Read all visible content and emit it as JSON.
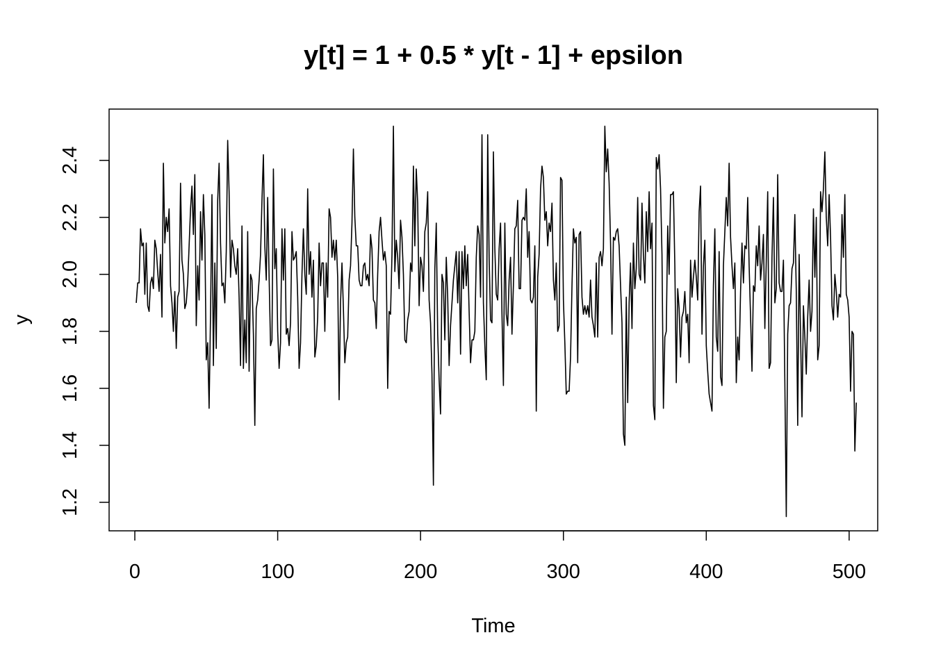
{
  "chart_data": {
    "type": "line",
    "title": "y[t] = 1 + 0.5 * y[t - 1] + epsilon",
    "xlabel": "Time",
    "ylabel": "y",
    "xlim": [
      -18,
      520
    ],
    "ylim": [
      1.1,
      2.58
    ],
    "x_ticks": [
      0,
      100,
      200,
      300,
      400,
      500
    ],
    "x_tick_labels": [
      "0",
      "100",
      "200",
      "300",
      "400",
      "500"
    ],
    "y_ticks": [
      1.2,
      1.4,
      1.6,
      1.8,
      2.0,
      2.2,
      2.4
    ],
    "y_tick_labels": [
      "1.2",
      "1.4",
      "1.6",
      "1.8",
      "2.0",
      "2.2",
      "2.4"
    ],
    "grid": false,
    "legend": "none",
    "line_color": "#000000",
    "series": [
      {
        "x_start": 1,
        "x_step": 1,
        "values": [
          1.9,
          1.97,
          1.97,
          2.16,
          2.1,
          2.11,
          1.93,
          2.11,
          1.89,
          1.87,
          1.97,
          1.99,
          1.95,
          2.12,
          2.09,
          2.01,
          1.94,
          2.07,
          1.85,
          2.39,
          2.11,
          2.2,
          2.15,
          2.23,
          1.96,
          1.9,
          1.8,
          1.94,
          1.74,
          1.92,
          1.94,
          2.32,
          2.05,
          2.0,
          1.88,
          1.9,
          1.97,
          2.1,
          2.23,
          2.31,
          2.14,
          2.35,
          1.82,
          2.03,
          1.91,
          2.22,
          2.05,
          2.28,
          2.14,
          1.7,
          1.76,
          1.53,
          1.86,
          2.28,
          1.68,
          2.04,
          1.74,
          2.26,
          2.39,
          2.11,
          1.96,
          1.97,
          1.9,
          2.08,
          2.47,
          2.29,
          1.99,
          2.12,
          2.09,
          2.03,
          2.0,
          2.09,
          1.92,
          1.68,
          2.17,
          1.67,
          1.84,
          1.69,
          2.15,
          1.66,
          2.0,
          1.98,
          1.79,
          1.47,
          1.88,
          1.91,
          1.98,
          2.07,
          2.26,
          2.42,
          2.1,
          1.98,
          2.27,
          1.99,
          1.75,
          1.77,
          2.37,
          2.02,
          2.09,
          1.8,
          1.67,
          1.76,
          2.16,
          1.98,
          2.16,
          1.79,
          1.81,
          1.75,
          1.83,
          2.15,
          2.05,
          2.06,
          2.08,
          1.92,
          1.67,
          1.76,
          2.0,
          2.16,
          2.0,
          1.93,
          2.3,
          2.0,
          2.08,
          1.92,
          2.05,
          1.71,
          1.75,
          1.85,
          2.11,
          1.96,
          2.04,
          2.04,
          1.8,
          2.04,
          1.92,
          2.23,
          2.2,
          2.06,
          2.12,
          2.05,
          2.12,
          1.99,
          1.56,
          1.9,
          2.04,
          1.88,
          1.69,
          1.76,
          1.78,
          1.98,
          2.03,
          2.18,
          2.44,
          2.2,
          2.1,
          2.1,
          1.98,
          1.96,
          1.96,
          2.03,
          2.04,
          1.98,
          2.0,
          1.96,
          2.14,
          2.09,
          1.91,
          1.9,
          1.81,
          2.0,
          2.15,
          2.2,
          2.12,
          2.05,
          2.08,
          2.03,
          1.6,
          1.87,
          1.86,
          2.07,
          2.52,
          2.01,
          2.12,
          2.06,
          1.95,
          2.19,
          2.13,
          2.0,
          1.77,
          1.76,
          1.84,
          1.87,
          2.04,
          2.01,
          2.38,
          2.1,
          2.37,
          2.25,
          1.89,
          2.06,
          2.03,
          1.94,
          2.15,
          2.18,
          2.29,
          1.91,
          1.83,
          1.65,
          1.26,
          2.02,
          2.18,
          1.79,
          1.63,
          1.51,
          2.0,
          1.97,
          1.77,
          2.06,
          1.92,
          1.68,
          1.82,
          1.9,
          1.98,
          2.03,
          2.08,
          1.9,
          2.08,
          1.72,
          2.08,
          1.95,
          2.1,
          1.96,
          2.07,
          1.87,
          1.69,
          1.77,
          1.77,
          1.8,
          2.06,
          2.17,
          2.14,
          1.92,
          2.49,
          1.9,
          1.75,
          1.63,
          2.49,
          2.06,
          1.84,
          1.83,
          2.43,
          2.09,
          1.93,
          1.91,
          2.09,
          2.18,
          1.86,
          1.61,
          2.18,
          1.86,
          1.82,
          1.98,
          2.06,
          1.79,
          1.96,
          2.16,
          2.17,
          2.26,
          1.95,
          1.95,
          2.19,
          2.2,
          2.19,
          2.3,
          2.06,
          2.15,
          1.91,
          1.9,
          1.92,
          2.1,
          1.52,
          1.99,
          2.07,
          2.3,
          2.38,
          2.34,
          2.19,
          2.22,
          2.1,
          2.18,
          2.15,
          2.25,
          1.98,
          1.91,
          2.04,
          1.8,
          1.82,
          2.34,
          2.33,
          1.91,
          1.76,
          1.58,
          1.59,
          1.59,
          1.71,
          1.96,
          2.16,
          2.11,
          2.13,
          1.69,
          2.14,
          2.15,
          1.92,
          1.86,
          1.89,
          1.86,
          1.89,
          1.85,
          1.98,
          1.85,
          1.82,
          1.78,
          2.04,
          1.78,
          2.06,
          2.08,
          2.03,
          2.09,
          2.52,
          2.36,
          2.44,
          2.32,
          2.11,
          1.79,
          2.13,
          2.12,
          2.15,
          2.16,
          2.1,
          1.96,
          1.83,
          1.44,
          1.4,
          1.92,
          1.55,
          1.9,
          2.04,
          1.81,
          2.11,
          1.95,
          2.02,
          2.27,
          2.0,
          1.98,
          2.25,
          2.07,
          1.97,
          2.22,
          2.08,
          2.29,
          2.09,
          2.18,
          1.54,
          1.49,
          2.41,
          2.37,
          2.42,
          2.3,
          2.07,
          1.53,
          1.78,
          1.8,
          2.17,
          2.0,
          2.28,
          2.28,
          2.29,
          2.03,
          1.62,
          1.95,
          1.88,
          1.71,
          1.85,
          1.87,
          1.94,
          1.83,
          1.86,
          1.69,
          2.05,
          1.92,
          1.99,
          2.05,
          1.99,
          1.91,
          2.22,
          2.31,
          1.79,
          2.03,
          2.12,
          1.75,
          1.66,
          1.58,
          1.55,
          1.52,
          1.96,
          2.16,
          1.78,
          1.73,
          2.08,
          1.64,
          1.61,
          2.03,
          2.15,
          2.27,
          2.17,
          2.39,
          2.13,
          2.03,
          1.95,
          2.04,
          1.62,
          1.78,
          1.7,
          1.94,
          2.11,
          1.97,
          2.1,
          2.09,
          2.27,
          2.03,
          1.85,
          1.66,
          1.96,
          1.94,
          2.1,
          2.03,
          2.17,
          1.98,
          2.04,
          2.14,
          1.81,
          2.05,
          2.29,
          1.67,
          1.69,
          2.06,
          2.27,
          1.9,
          1.95,
          2.35,
          1.97,
          1.94,
          1.94,
          2.05,
          1.62,
          1.15,
          1.79,
          1.89,
          1.9,
          2.02,
          2.04,
          2.21,
          1.94,
          1.47,
          2.07,
          1.79,
          1.5,
          1.89,
          1.78,
          1.65,
          1.85,
          1.98,
          1.8,
          1.87,
          2.23,
          1.99,
          2.2,
          1.7,
          1.75,
          2.29,
          2.22,
          2.3,
          2.43,
          2.2,
          2.1,
          2.28,
          2.13,
          1.89,
          1.84,
          2.0,
          1.94,
          1.85,
          1.93,
          1.92,
          2.21,
          2.06,
          2.28,
          1.93,
          1.91,
          1.85,
          1.59,
          1.8,
          1.79,
          1.38,
          1.55
        ]
      }
    ]
  }
}
